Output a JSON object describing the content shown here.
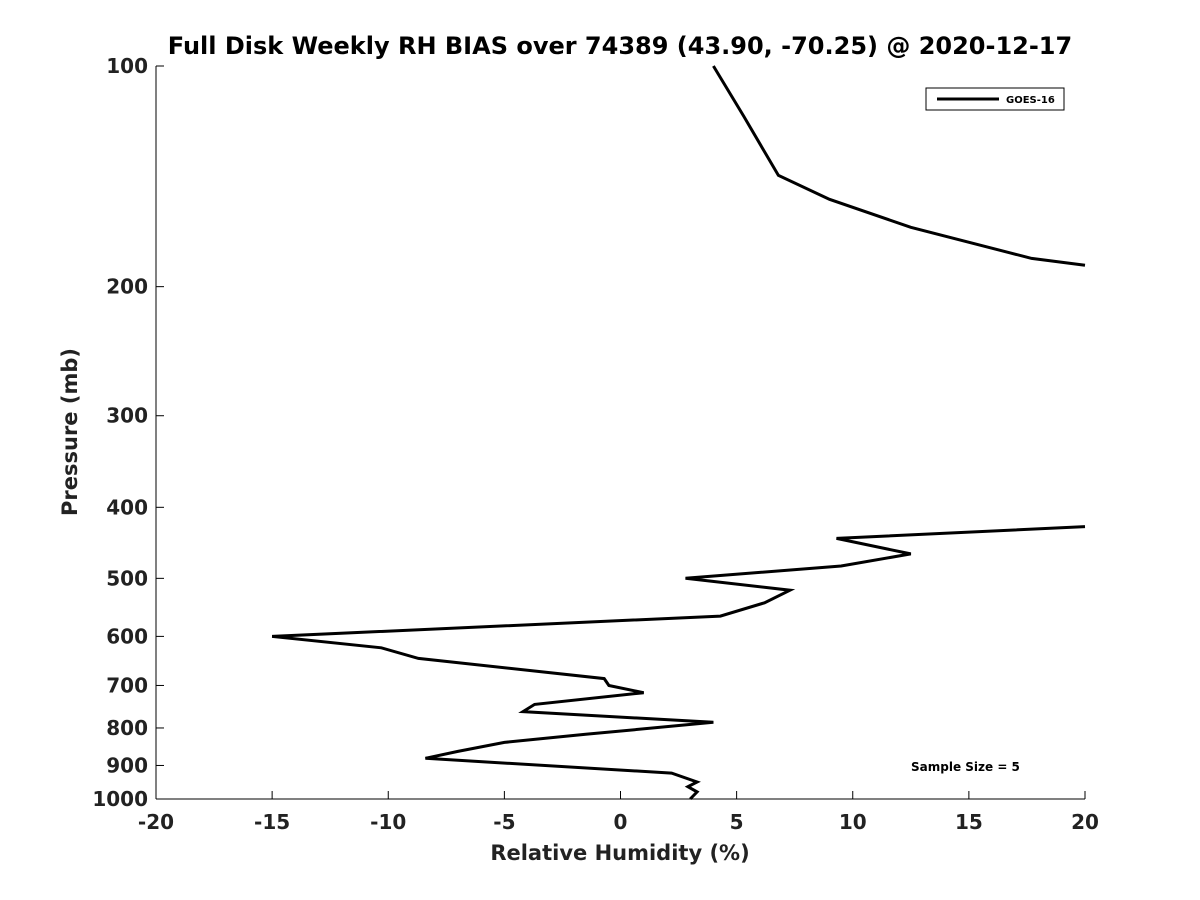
{
  "chart_data": {
    "type": "line",
    "title": "Full Disk Weekly RH BIAS over 74389 (43.90, -70.25) @ 2020-12-17",
    "xlabel": "Relative Humidity (%)",
    "ylabel": "Pressure (mb)",
    "xlim": [
      -20,
      20
    ],
    "ylim": [
      100,
      1000
    ],
    "y_scale": "log",
    "y_reversed": true,
    "x_ticks": [
      -20,
      -15,
      -10,
      -5,
      0,
      5,
      10,
      15,
      20
    ],
    "x_tick_labels": [
      "-20",
      "-15",
      "-10",
      "-5",
      "0",
      "5",
      "10",
      "15",
      "20"
    ],
    "y_ticks": [
      100,
      200,
      300,
      400,
      500,
      600,
      700,
      800,
      900,
      1000
    ],
    "y_tick_labels": [
      "100",
      "200",
      "300",
      "400",
      "500",
      "600",
      "700",
      "800",
      "900",
      "1000"
    ],
    "grid": false,
    "legend_position": "top-right",
    "annotation": "Sample Size = 5",
    "series": [
      {
        "name": "GOES-16",
        "color": "#000000",
        "points": [
          [
            4.0,
            100
          ],
          [
            5.3,
            117
          ],
          [
            6.8,
            141
          ],
          [
            9.0,
            152
          ],
          [
            12.5,
            166
          ],
          [
            17.7,
            183
          ],
          [
            20.0,
            187
          ],
          null,
          [
            20.0,
            425
          ],
          [
            9.3,
            441
          ],
          [
            12.5,
            463
          ],
          [
            9.5,
            481
          ],
          [
            2.8,
            500
          ],
          [
            7.3,
            519
          ],
          [
            6.2,
            540
          ],
          [
            4.3,
            563
          ],
          [
            -15.0,
            600
          ],
          [
            -10.3,
            622
          ],
          [
            -8.7,
            643
          ],
          [
            -0.7,
            685
          ],
          [
            -0.5,
            700
          ],
          [
            1.0,
            716
          ],
          [
            -3.7,
            743
          ],
          [
            -4.2,
            760
          ],
          [
            4.0,
            786
          ],
          [
            -1.5,
            816
          ],
          [
            -5.0,
            837
          ],
          [
            -7.0,
            861
          ],
          [
            -8.4,
            880
          ],
          [
            2.2,
            922
          ],
          [
            3.3,
            948
          ],
          [
            2.9,
            962
          ],
          [
            3.3,
            978
          ],
          [
            3.0,
            1000
          ]
        ]
      }
    ]
  }
}
